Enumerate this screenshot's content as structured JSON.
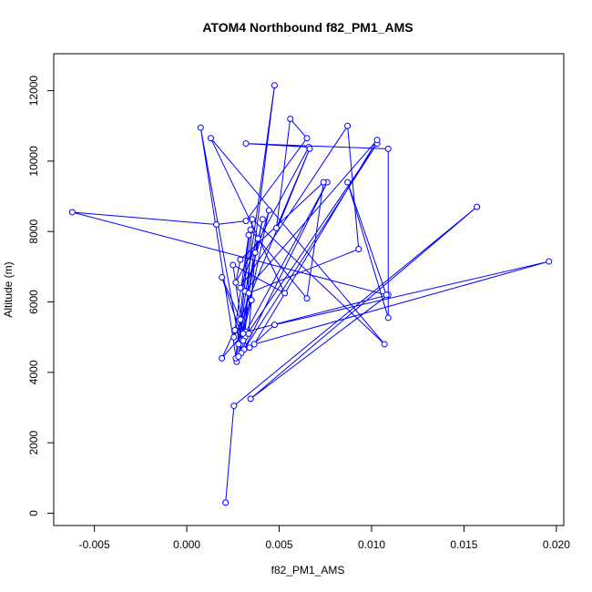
{
  "chart_data": {
    "type": "line",
    "title": "ATOM4 Northbound f82_PM1_AMS",
    "xlabel": "f82_PM1_AMS",
    "ylabel": "Altitude (m)",
    "xlim": [
      -0.0072,
      0.0204
    ],
    "ylim": [
      -350,
      13050
    ],
    "x_ticks": [
      -0.005,
      0.0,
      0.005,
      0.01,
      0.015,
      0.02
    ],
    "x_tick_labels": [
      "-0.005",
      "0.000",
      "0.005",
      "0.010",
      "0.015",
      "0.020"
    ],
    "y_ticks": [
      0,
      2000,
      4000,
      6000,
      8000,
      10000,
      12000
    ],
    "y_tick_labels": [
      "0",
      "2000",
      "4000",
      "6000",
      "8000",
      "10000",
      "12000"
    ],
    "grid": false,
    "legend": "none",
    "series": [
      {
        "style": "line+open-circle",
        "x": [
          0.0021,
          0.00255,
          0.0157,
          0.00345,
          0.0109,
          0.0032,
          0.0076,
          0.0031,
          0.0103,
          0.00315,
          0.00355,
          0.0107,
          0.0013,
          0.0053,
          0.0025,
          0.00305,
          0.0019,
          0.0026,
          0.0034,
          0.00475,
          0.0196,
          0.00365,
          0.0103,
          0.00315,
          0.00445,
          0.0027,
          0.00075,
          0.00295,
          0.00335,
          0.0037,
          0.0041,
          0.00265,
          0.00335,
          0.00255,
          0.0035,
          0.0029,
          0.00385,
          0.0029,
          0.0087,
          0.0093,
          0.00335,
          0.00475,
          0.0028,
          0.00345,
          0.0065,
          0.0074,
          0.0029,
          0.00265,
          0.0066,
          0.0032,
          0.0109,
          0.0109,
          0.0087,
          0.0108,
          -0.0062,
          0.0016,
          0.0032,
          0.0065,
          0.0056,
          0.00485,
          0.00665,
          0.0029,
          0.0019,
          0.00305,
          0.0028
        ],
        "y": [
          300,
          3050,
          8700,
          3250,
          6200,
          5150,
          9400,
          4650,
          10500,
          5000,
          8350,
          4800,
          10650,
          6250,
          7050,
          5100,
          4400,
          5200,
          4700,
          5350,
          7150,
          4800,
          10600,
          6300,
          8600,
          4300,
          10950,
          4550,
          5100,
          7400,
          8350,
          4400,
          7900,
          5000,
          6050,
          4800,
          7800,
          6400,
          11000,
          7500,
          6250,
          12150,
          4800,
          8050,
          6100,
          9400,
          7200,
          6550,
          10400,
          10500,
          10350,
          5550,
          9400,
          6200,
          8550,
          8200,
          8300,
          10650,
          11200,
          8100,
          10350,
          5500,
          6700,
          4900,
          4450
        ]
      }
    ]
  },
  "colors": {
    "series_line": "#0000FF",
    "series_marker": "#0000FF",
    "axis": "#000000",
    "background": "#FFFFFF"
  }
}
